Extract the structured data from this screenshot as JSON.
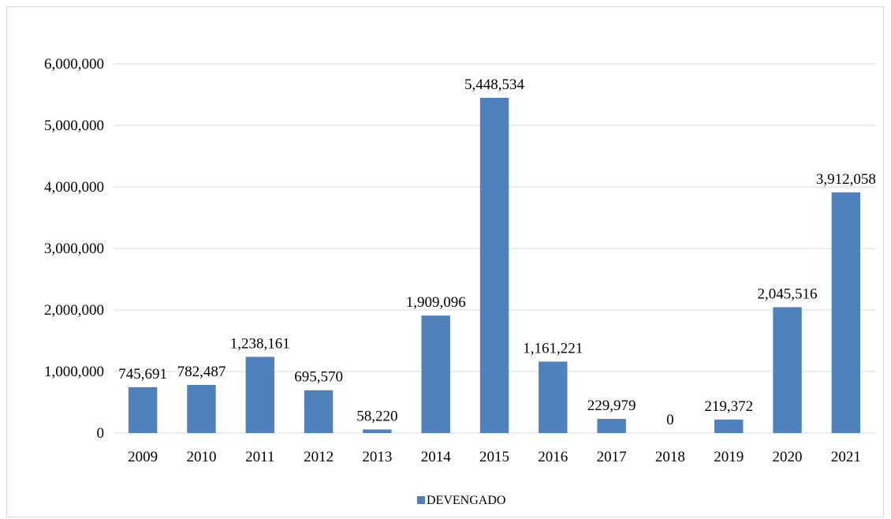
{
  "chart_data": {
    "type": "bar",
    "categories": [
      "2009",
      "2010",
      "2011",
      "2012",
      "2013",
      "2014",
      "2015",
      "2016",
      "2017",
      "2018",
      "2019",
      "2020",
      "2021"
    ],
    "series": [
      {
        "name": "DEVENGADO",
        "values": [
          745691,
          782487,
          1238161,
          695570,
          58220,
          1909096,
          5448534,
          1161221,
          229979,
          0,
          219372,
          2045516,
          3912058
        ],
        "labels": [
          "745,691",
          "782,487",
          "1,238,161",
          "695,570",
          "58,220",
          "1,909,096",
          "5,448,534",
          "1,161,221",
          "229,979",
          "0",
          "219,372",
          "2,045,516",
          "3,912,058"
        ],
        "color": "#4f81bd"
      }
    ],
    "title": "",
    "xlabel": "",
    "ylabel": "",
    "ylim": [
      0,
      6000000
    ],
    "yticks": [
      0,
      1000000,
      2000000,
      3000000,
      4000000,
      5000000,
      6000000
    ],
    "ytick_labels": [
      "0",
      "1,000,000",
      "2,000,000",
      "3,000,000",
      "4,000,000",
      "5,000,000",
      "6,000,000"
    ],
    "grid": true,
    "gridline_color": "#d9d9d9",
    "legend_position": "bottom"
  }
}
